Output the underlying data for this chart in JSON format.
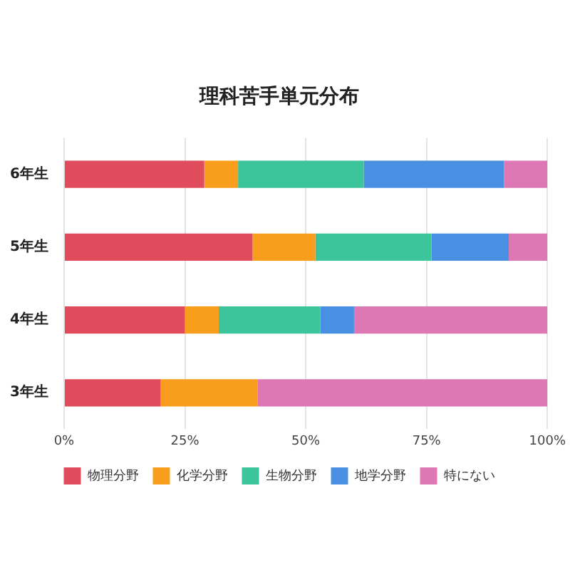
{
  "chart_data": {
    "type": "bar",
    "orientation": "horizontal",
    "stacked": true,
    "title": "理科苦手単元分布",
    "categories": [
      "6年生",
      "5年生",
      "4年生",
      "3年生"
    ],
    "series": [
      {
        "name": "物理分野",
        "color": "#e04c5c",
        "values": [
          29,
          39,
          25,
          20
        ]
      },
      {
        "name": "化学分野",
        "color": "#f99e1c",
        "values": [
          7,
          13,
          7,
          20
        ]
      },
      {
        "name": "生物分野",
        "color": "#3cc49a",
        "values": [
          26,
          24,
          21,
          0
        ]
      },
      {
        "name": "地学分野",
        "color": "#4a90e2",
        "values": [
          29,
          16,
          7,
          0
        ]
      },
      {
        "name": "特にない",
        "color": "#de78b5",
        "values": [
          9,
          8,
          40,
          60
        ]
      }
    ],
    "xlim": [
      0,
      100
    ],
    "xticks": [
      {
        "value": 0,
        "label": "0%"
      },
      {
        "value": 25,
        "label": "25%"
      },
      {
        "value": 50,
        "label": "50%"
      },
      {
        "value": 75,
        "label": "75%"
      },
      {
        "value": 100,
        "label": "100%"
      }
    ],
    "grid": "x",
    "legend": "bottom"
  }
}
